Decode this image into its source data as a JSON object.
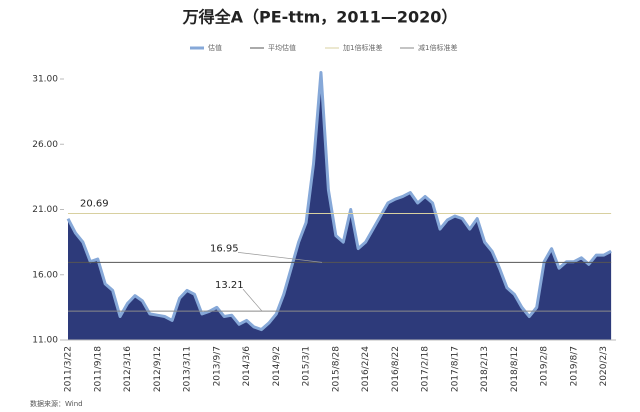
{
  "chart_data": {
    "type": "area",
    "title": "万得全A（PE-ttm，2011—2020）",
    "source": "数据来源：Wind",
    "categories": [
      "2011/3/22",
      null,
      null,
      null,
      "2011/9/18",
      null,
      null,
      null,
      "2012/3/16",
      null,
      null,
      null,
      "2012/9/12",
      null,
      null,
      null,
      "2013/3/11",
      null,
      null,
      null,
      "2013/9/7",
      null,
      null,
      null,
      "2014/3/6",
      null,
      null,
      null,
      "2014/9/2",
      null,
      null,
      null,
      "2015/3/1",
      null,
      null,
      null,
      "2015/8/28",
      null,
      null,
      null,
      "2016/2/24",
      null,
      null,
      null,
      "2016/8/22",
      null,
      null,
      null,
      "2017/2/18",
      null,
      null,
      null,
      "2017/8/17",
      null,
      null,
      null,
      "2018/2/13",
      null,
      null,
      null,
      "2018/8/12",
      null,
      null,
      null,
      "2019/2/8",
      null,
      null,
      null,
      "2019/8/7",
      null,
      null,
      null,
      "2020/2/3",
      null
    ],
    "series": [
      {
        "name": "估值",
        "color": "#2d3a7a",
        "edge_color": "#86a8d8",
        "values": [
          20.3,
          19.2,
          18.5,
          17.0,
          17.2,
          15.3,
          14.8,
          12.8,
          13.8,
          14.4,
          14.0,
          13.0,
          12.9,
          12.8,
          12.5,
          14.2,
          14.8,
          14.5,
          13.0,
          13.2,
          13.5,
          12.8,
          12.9,
          12.2,
          12.5,
          12.0,
          11.8,
          12.3,
          13.0,
          14.5,
          16.5,
          18.5,
          20.0,
          24.5,
          31.5,
          22.5,
          19.0,
          18.5,
          21.0,
          18.0,
          18.5,
          19.5,
          20.5,
          21.5,
          21.8,
          22.0,
          22.3,
          21.5,
          22.0,
          21.5,
          19.5,
          20.2,
          20.5,
          20.3,
          19.5,
          20.3,
          18.5,
          17.8,
          16.5,
          15.0,
          14.5,
          13.5,
          12.8,
          13.5,
          17.0,
          18.0,
          16.5,
          17.0,
          17.0,
          17.3,
          16.8,
          17.5,
          17.5,
          17.8
        ]
      }
    ],
    "reference_lines": [
      {
        "name": "平均估值",
        "value": 16.95,
        "color": "#555555"
      },
      {
        "name": "加1倍标准差",
        "value": 20.69,
        "color": "#d8d0a0"
      },
      {
        "name": "减1倍标准差",
        "value": 13.21,
        "color": "#8a8a8a"
      }
    ],
    "ylim": [
      11,
      31
    ],
    "yticks": [
      {
        "value": 11,
        "label": "11.00"
      },
      {
        "value": 16,
        "label": "16.00"
      },
      {
        "value": 21,
        "label": "21.00"
      },
      {
        "value": 26,
        "label": "26.00"
      },
      {
        "value": 31,
        "label": "31.00"
      }
    ]
  }
}
